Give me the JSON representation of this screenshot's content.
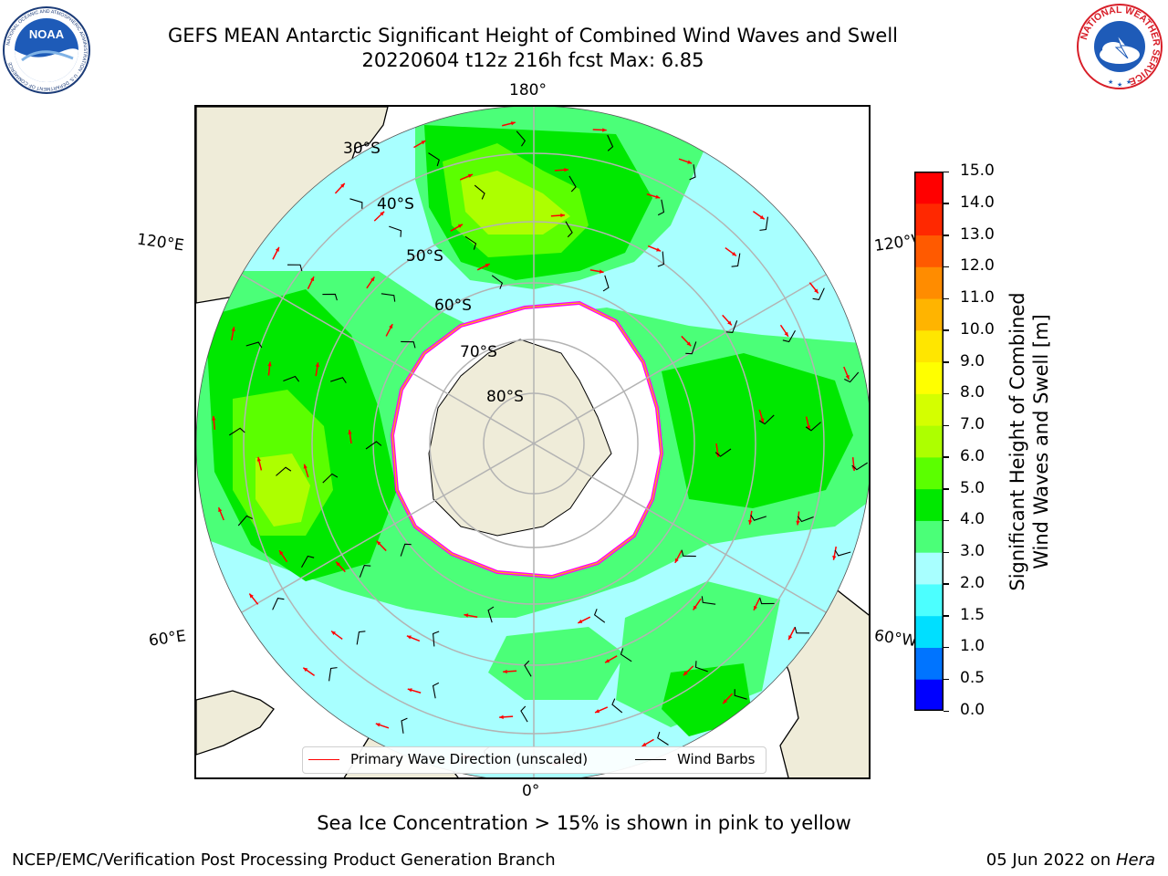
{
  "header": {
    "title_line1": "GEFS MEAN Antarctic Significant Height of Combined Wind Waves and Swell",
    "title_line2": "20220604 t12z 216h fcst   Max: 6.85"
  },
  "logos": {
    "left": {
      "text": "NOAA",
      "ring_text": "NATIONAL OCEANIC AND ATMOSPHERIC ADMINISTRATION · U.S. DEPARTMENT OF COMMERCE"
    },
    "right": {
      "ring_text": "NATIONAL WEATHER SERVICE"
    }
  },
  "map": {
    "projection": "south polar stereographic",
    "longitude_labels": {
      "top": "180°",
      "bottom": "0°",
      "upper_left": "120°E",
      "upper_right": "120°W",
      "lower_left": "60°E",
      "lower_right": "60°W"
    },
    "latitude_labels": [
      "30°S",
      "40°S",
      "50°S",
      "60°S",
      "70°S",
      "80°S"
    ],
    "colors": {
      "land": "#efecd9",
      "ice_shelf": "#ffffff",
      "grid": "#b3b3b3",
      "wave_arrow": "#ff0000",
      "wind_barb": "#000000",
      "sea_ice": "#ff00ff"
    }
  },
  "colorbar": {
    "label_line1": "Significant Height of Combined",
    "label_line2": "Wind Waves and Swell [m]",
    "ticks": [
      "15.0",
      "14.0",
      "13.0",
      "12.0",
      "11.0",
      "10.0",
      "9.0",
      "8.0",
      "7.0",
      "6.0",
      "5.0",
      "4.0",
      "3.0",
      "2.0",
      "1.5",
      "1.0",
      "0.5",
      "0.0"
    ],
    "bands_bottom_to_top": [
      "#0000ff",
      "#0074ff",
      "#00dfff",
      "#4cffff",
      "#a8ffff",
      "#4bff78",
      "#00e800",
      "#5bff00",
      "#adff00",
      "#d4ff00",
      "#ffff00",
      "#ffe600",
      "#ffb400",
      "#ff8c00",
      "#ff5a00",
      "#ff2800",
      "#ff0000"
    ]
  },
  "legend": {
    "wave_label": "Primary Wave Direction (unscaled)",
    "wind_label": "Wind Barbs"
  },
  "ice_note": "Sea Ice Concentration > 15% is shown in pink to yellow",
  "footer": {
    "left": "NCEP/EMC/Verification Post Processing Product Generation Branch",
    "date": "05 Jun 2022",
    "on": " on ",
    "machine": "Hera"
  }
}
